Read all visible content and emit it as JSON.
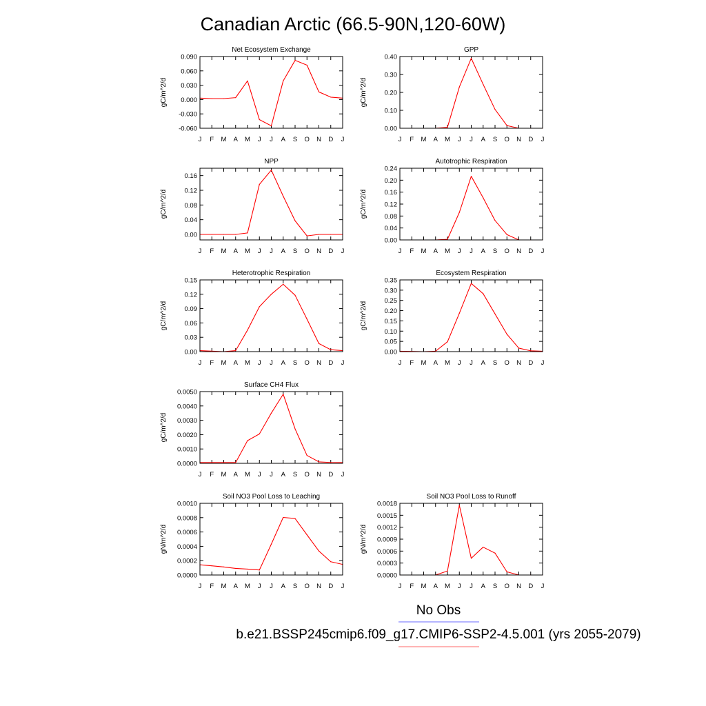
{
  "figure": {
    "title": "Canadian Arctic (66.5-90N,120-60W)",
    "legend": [
      {
        "label": "No Obs",
        "color": "#8888ff"
      },
      {
        "label": "b.e21.BSSP245cmip6.f09_g17.CMIP6-SSP2-4.5.001 (yrs 2055-2079)",
        "color": "#ff8888"
      }
    ]
  },
  "chart_data": [
    {
      "id": "nee",
      "type": "line",
      "title": "Net Ecosystem Exchange",
      "ylabel": "gC/m^2/d",
      "categories": [
        "J",
        "F",
        "M",
        "A",
        "M",
        "J",
        "J",
        "A",
        "S",
        "O",
        "N",
        "D",
        "J"
      ],
      "ylim": [
        -0.06,
        0.09
      ],
      "yticks": [
        -0.06,
        -0.03,
        0.0,
        0.03,
        0.06,
        0.09
      ],
      "ytick_labels": [
        "-0.060",
        "-0.030",
        "0.000",
        "0.030",
        "0.060",
        "0.090"
      ],
      "grid": false,
      "series_color": "#ff0000",
      "values": [
        0.003,
        0.002,
        0.002,
        0.004,
        0.039,
        -0.042,
        -0.055,
        0.039,
        0.082,
        0.072,
        0.016,
        0.005,
        0.003
      ]
    },
    {
      "id": "gpp",
      "type": "line",
      "title": "GPP",
      "ylabel": "gC/m^2/d",
      "categories": [
        "J",
        "F",
        "M",
        "A",
        "M",
        "J",
        "J",
        "A",
        "S",
        "O",
        "N",
        "D",
        "J"
      ],
      "ylim": [
        0.0,
        0.4
      ],
      "yticks": [
        0.0,
        0.1,
        0.2,
        0.3,
        0.4
      ],
      "ytick_labels": [
        "0.00",
        "0.10",
        "0.20",
        "0.30",
        "0.40"
      ],
      "grid": false,
      "series_color": "#ff0000",
      "values": [
        0.0,
        0.0,
        0.0,
        0.0,
        0.005,
        0.23,
        0.39,
        0.245,
        0.105,
        0.015,
        0.0,
        0.0,
        0.0
      ]
    },
    {
      "id": "npp",
      "type": "line",
      "title": "NPP",
      "ylabel": "gC/m^2/d",
      "categories": [
        "J",
        "F",
        "M",
        "A",
        "M",
        "J",
        "J",
        "A",
        "S",
        "O",
        "N",
        "D",
        "J"
      ],
      "ylim": [
        -0.015,
        0.18
      ],
      "yticks": [
        0.0,
        0.04,
        0.08,
        0.12,
        0.16
      ],
      "ytick_labels": [
        "0.00",
        "0.04",
        "0.08",
        "0.12",
        "0.16"
      ],
      "grid": false,
      "series_color": "#ff0000",
      "values": [
        0.0,
        0.0,
        0.0,
        0.0,
        0.004,
        0.136,
        0.175,
        0.104,
        0.037,
        -0.004,
        0.0,
        0.0,
        0.0
      ]
    },
    {
      "id": "ar",
      "type": "line",
      "title": "Autotrophic Respiration",
      "ylabel": "gC/m^2/d",
      "categories": [
        "J",
        "F",
        "M",
        "A",
        "M",
        "J",
        "J",
        "A",
        "S",
        "O",
        "N",
        "D",
        "J"
      ],
      "ylim": [
        0.0,
        0.24
      ],
      "yticks": [
        0.0,
        0.04,
        0.08,
        0.12,
        0.16,
        0.2,
        0.24
      ],
      "ytick_labels": [
        "0.00",
        "0.04",
        "0.08",
        "0.12",
        "0.16",
        "0.20",
        "0.24"
      ],
      "grid": false,
      "series_color": "#ff0000",
      "values": [
        0.0,
        0.0,
        0.0,
        0.0,
        0.002,
        0.092,
        0.213,
        0.141,
        0.065,
        0.018,
        0.0,
        0.0,
        0.0
      ]
    },
    {
      "id": "hr",
      "type": "line",
      "title": "Heterotrophic Respiration",
      "ylabel": "gC/m^2/d",
      "categories": [
        "J",
        "F",
        "M",
        "A",
        "M",
        "J",
        "J",
        "A",
        "S",
        "O",
        "N",
        "D",
        "J"
      ],
      "ylim": [
        0.0,
        0.15
      ],
      "yticks": [
        0.0,
        0.03,
        0.06,
        0.09,
        0.12,
        0.15
      ],
      "ytick_labels": [
        "0.00",
        "0.03",
        "0.06",
        "0.09",
        "0.12",
        "0.15"
      ],
      "grid": false,
      "series_color": "#ff0000",
      "values": [
        0.002,
        0.001,
        0.0,
        0.002,
        0.045,
        0.094,
        0.12,
        0.141,
        0.118,
        0.068,
        0.017,
        0.004,
        0.002
      ]
    },
    {
      "id": "er",
      "type": "line",
      "title": "Ecosystem Respiration",
      "ylabel": "gC/m^2/d",
      "categories": [
        "J",
        "F",
        "M",
        "A",
        "M",
        "J",
        "J",
        "A",
        "S",
        "O",
        "N",
        "D",
        "J"
      ],
      "ylim": [
        0.0,
        0.35
      ],
      "yticks": [
        0.0,
        0.05,
        0.1,
        0.15,
        0.2,
        0.25,
        0.3,
        0.35
      ],
      "ytick_labels": [
        "0.00",
        "0.05",
        "0.10",
        "0.15",
        "0.20",
        "0.25",
        "0.30",
        "0.35"
      ],
      "grid": false,
      "series_color": "#ff0000",
      "values": [
        0.002,
        0.001,
        0.0,
        0.002,
        0.048,
        0.187,
        0.333,
        0.283,
        0.184,
        0.085,
        0.017,
        0.004,
        0.002
      ]
    },
    {
      "id": "ch4",
      "type": "line",
      "title": "Surface CH4 Flux",
      "ylabel": "gC/m^2/d",
      "categories": [
        "J",
        "F",
        "M",
        "A",
        "M",
        "J",
        "J",
        "A",
        "S",
        "O",
        "N",
        "D",
        "J"
      ],
      "ylim": [
        0.0,
        0.005
      ],
      "yticks": [
        0.0,
        0.001,
        0.002,
        0.003,
        0.004,
        0.005
      ],
      "ytick_labels": [
        "0.0000",
        "0.0010",
        "0.0020",
        "0.0030",
        "0.0040",
        "0.0050"
      ],
      "grid": false,
      "series_color": "#ff0000",
      "values": [
        5e-05,
        5e-05,
        5e-05,
        5e-05,
        0.00158,
        0.00205,
        0.0035,
        0.00482,
        0.0024,
        0.00055,
        0.0001,
        6e-05,
        5e-05
      ]
    },
    {
      "id": "leach",
      "type": "line",
      "title": "Soil NO3 Pool Loss to Leaching",
      "ylabel": "gN/m^2/d",
      "categories": [
        "J",
        "F",
        "M",
        "A",
        "M",
        "J",
        "J",
        "A",
        "S",
        "O",
        "N",
        "D",
        "J"
      ],
      "ylim": [
        0.0,
        0.001
      ],
      "yticks": [
        0.0,
        0.0002,
        0.0004,
        0.0006,
        0.0008,
        0.001
      ],
      "ytick_labels": [
        "0.0000",
        "0.0002",
        "0.0004",
        "0.0006",
        "0.0008",
        "0.0010"
      ],
      "grid": false,
      "series_color": "#ff0000",
      "values": [
        0.000142,
        0.000128,
        0.000112,
        9.2e-05,
        8.2e-05,
        7e-05,
        0.00043,
        0.000803,
        0.000788,
        0.00056,
        0.000335,
        0.000185,
        0.000148
      ]
    },
    {
      "id": "runoff",
      "type": "line",
      "title": "Soil NO3 Pool Loss to Runoff",
      "ylabel": "gN/m^2/d",
      "categories": [
        "J",
        "F",
        "M",
        "A",
        "M",
        "J",
        "J",
        "A",
        "S",
        "O",
        "N",
        "D",
        "J"
      ],
      "ylim": [
        0.0,
        0.0018
      ],
      "yticks": [
        0.0,
        0.0003,
        0.0006,
        0.0009,
        0.0012,
        0.0015,
        0.0018
      ],
      "ytick_labels": [
        "0.0000",
        "0.0003",
        "0.0006",
        "0.0009",
        "0.0012",
        "0.0015",
        "0.0018"
      ],
      "grid": false,
      "series_color": "#ff0000",
      "values": [
        0.0,
        0.0,
        0.0,
        0.0,
        0.0001,
        0.00175,
        0.00042,
        0.0007,
        0.00055,
        8e-05,
        0.0,
        0.0,
        0.0
      ]
    }
  ]
}
